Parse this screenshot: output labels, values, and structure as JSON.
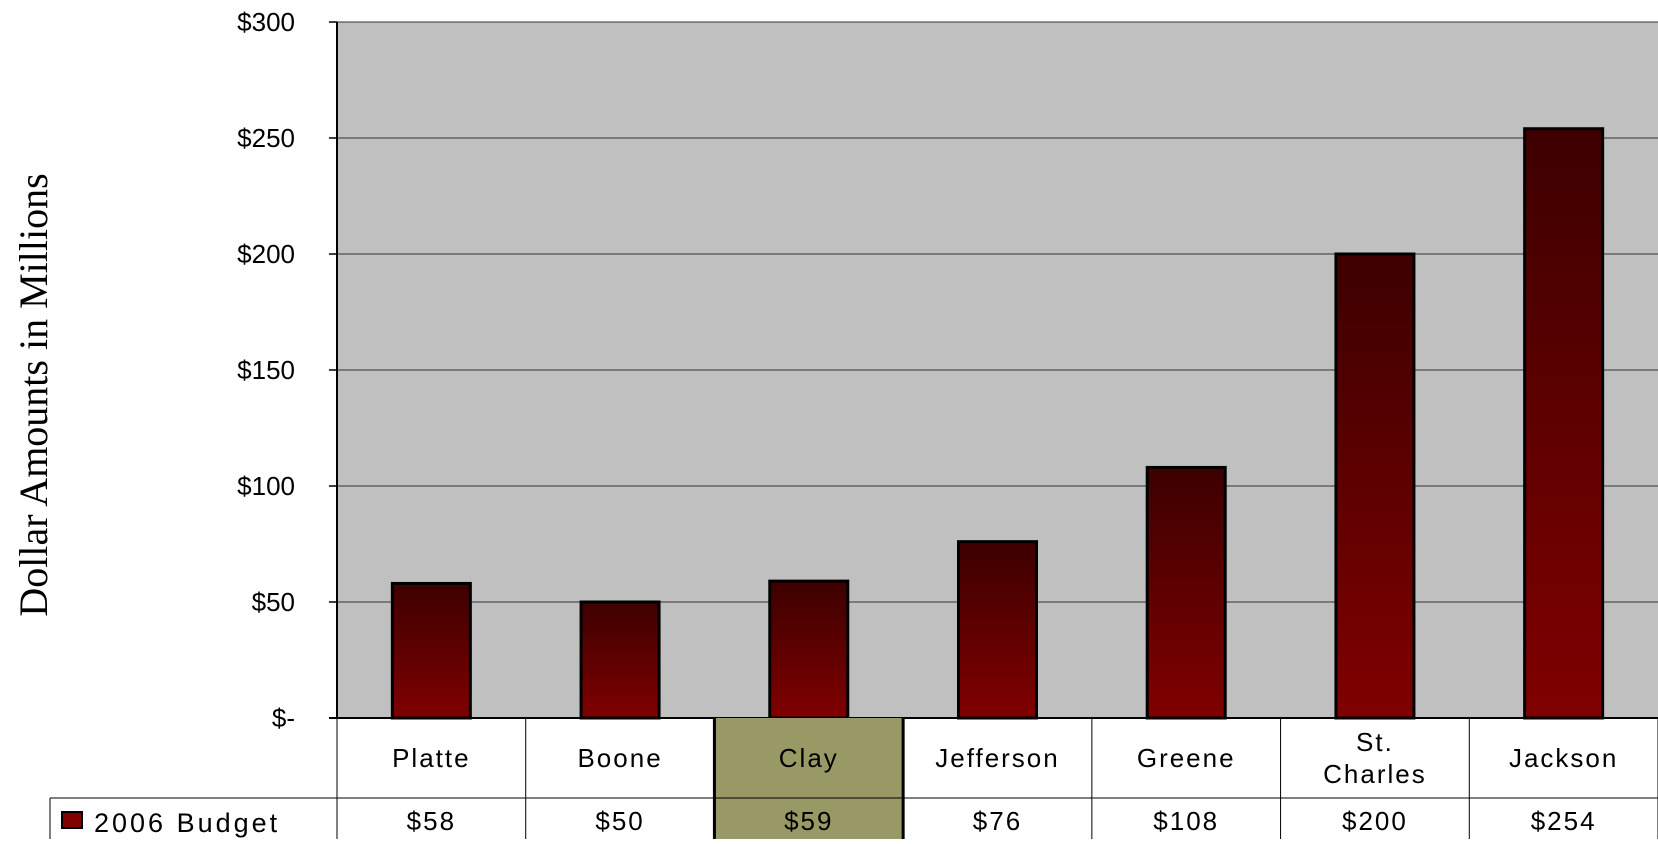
{
  "chart_data": {
    "type": "bar",
    "ylabel": "Dollar Amounts in Millions",
    "categories": [
      "Platte",
      "Boone",
      "Clay",
      "Jefferson",
      "Greene",
      "St. Charles",
      "Jackson"
    ],
    "category_lines": [
      [
        "Platte"
      ],
      [
        "Boone"
      ],
      [
        "Clay"
      ],
      [
        "Jefferson"
      ],
      [
        "Greene"
      ],
      [
        "St.",
        "Charles"
      ],
      [
        "Jackson"
      ]
    ],
    "series": [
      {
        "name": "2006 Budget",
        "values": [
          58,
          50,
          59,
          76,
          108,
          200,
          254
        ],
        "labels": [
          "$58",
          "$50",
          "$59",
          "$76",
          "$108",
          "$200",
          "$254"
        ]
      }
    ],
    "ylim": [
      0,
      300
    ],
    "yticks": [
      0,
      50,
      100,
      150,
      200,
      250,
      300
    ],
    "ytick_labels": [
      "$-",
      "$50",
      "$100",
      "$150",
      "$200",
      "$250",
      "$300"
    ],
    "grid": true,
    "data_table": true,
    "highlight_category": "Clay",
    "colors": {
      "plot_background": "#c0c0c0",
      "bar_top": "#3d0000",
      "bar_bottom": "#800000",
      "highlight": "#999966",
      "gridline": "#333333"
    }
  }
}
